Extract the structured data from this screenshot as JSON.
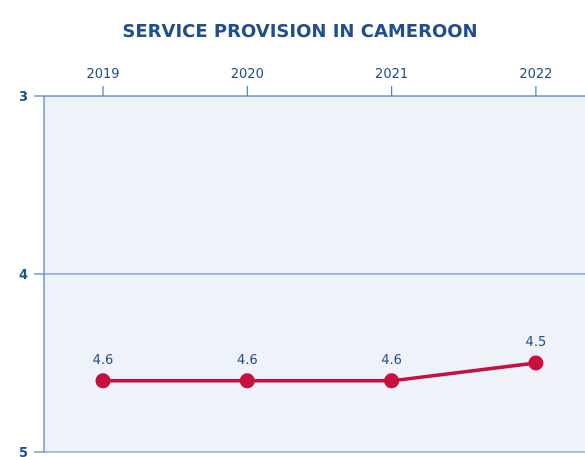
{
  "chart_data": {
    "type": "line",
    "title": "SERVICE PROVISION IN CAMEROON",
    "x_position": "top",
    "y_reversed": true,
    "categories": [
      "2019",
      "2020",
      "2021",
      "2022"
    ],
    "series": [
      {
        "values": [
          4.6,
          4.6,
          4.6,
          4.5
        ],
        "labels": [
          "4.6",
          "4.6",
          "4.6",
          "4.5"
        ]
      }
    ],
    "y_ticks": [
      3,
      4,
      5
    ],
    "y_tick_labels": [
      "3",
      "4",
      "5"
    ],
    "ylim": [
      3,
      5
    ],
    "grid": true,
    "colors": {
      "title": "#1f4f8f",
      "axis": "#4f7fc0",
      "plot_bg": "#eef3fa",
      "line": "#c8103e",
      "text": "#1f4f8f"
    }
  }
}
